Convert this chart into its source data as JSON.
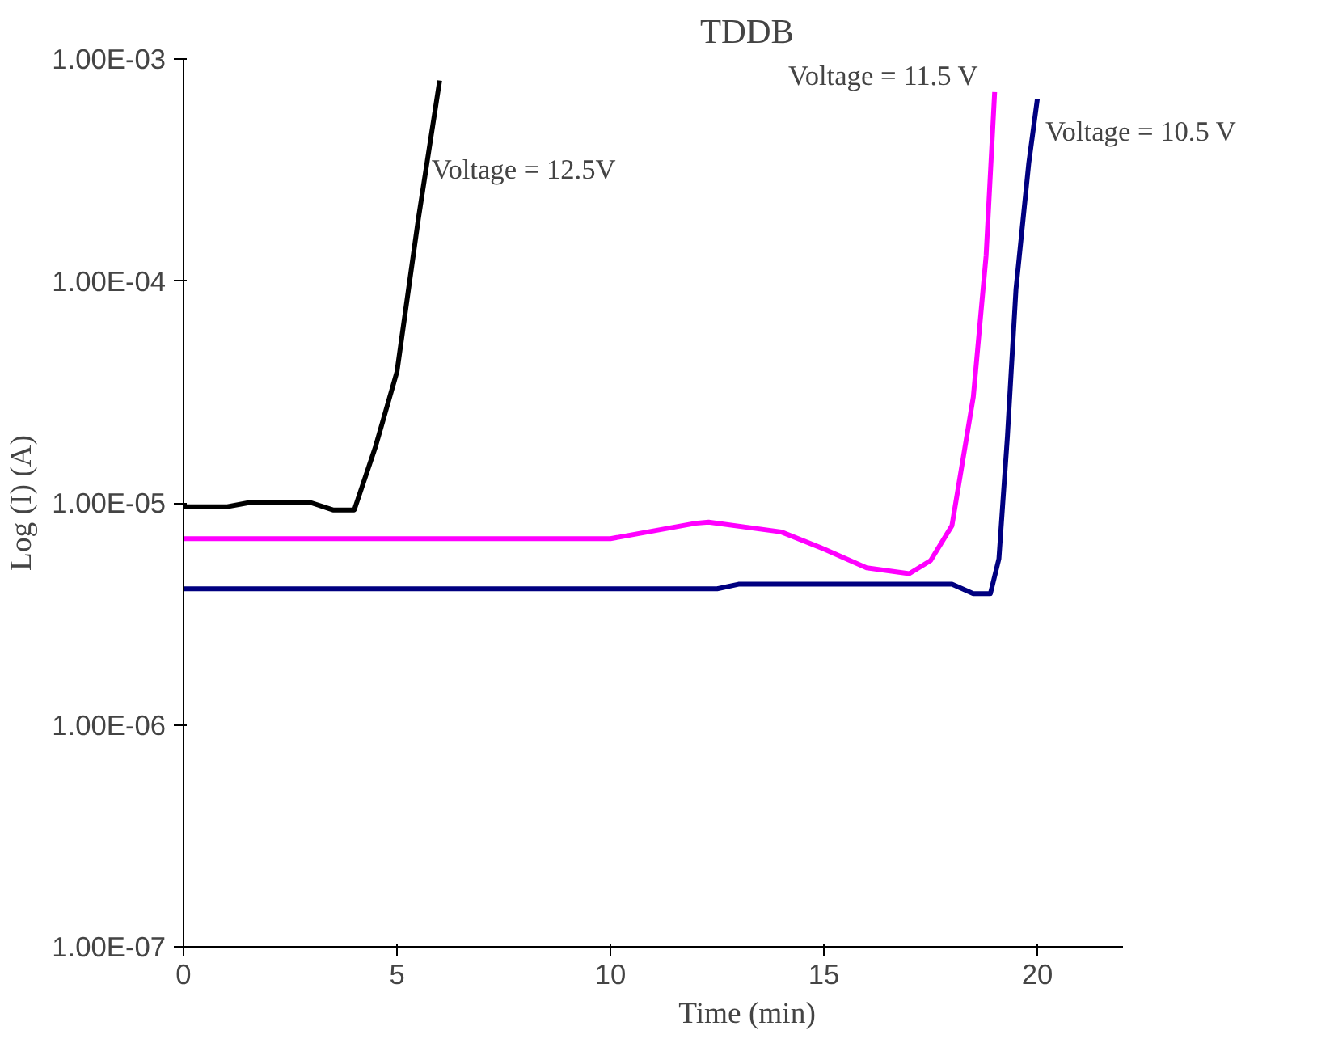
{
  "chart_data": {
    "type": "line",
    "title": "TDDB",
    "xlabel": "Time (min)",
    "ylabel": "Log (I) (A)",
    "log": "y",
    "grid": false,
    "marker": "none",
    "line_style": "solid",
    "xlim": [
      0,
      22
    ],
    "xticks": [
      0,
      5,
      10,
      15,
      20
    ],
    "ylim": [
      1e-07,
      0.001
    ],
    "yticks": [
      {
        "value": 1e-07,
        "label": "1.00E-07"
      },
      {
        "value": 1e-06,
        "label": "1.00E-06"
      },
      {
        "value": 1e-05,
        "label": "1.00E-05"
      },
      {
        "value": 0.0001,
        "label": "1.00E-04"
      },
      {
        "value": 0.001,
        "label": "1.00E-03"
      }
    ],
    "series": [
      {
        "color": "#000000",
        "x": [
          0,
          1,
          1.5,
          3,
          3.5,
          4,
          4.5,
          5,
          5.5,
          6
        ],
        "values": [
          9.6e-06,
          9.6e-06,
          1e-05,
          1e-05,
          9.3e-06,
          9.3e-06,
          1.8e-05,
          3.9e-05,
          0.00019,
          0.0008
        ]
      },
      {
        "color": "#ff00ff",
        "x": [
          0,
          10,
          12,
          12.3,
          14,
          15,
          16,
          17,
          17.5,
          18,
          18.5,
          18.8,
          19
        ],
        "values": [
          6.9e-06,
          6.9e-06,
          8.1e-06,
          8.2e-06,
          7.4e-06,
          6.2e-06,
          5.1e-06,
          4.8e-06,
          5.5e-06,
          7.9e-06,
          3e-05,
          0.00013,
          0.00071
        ]
      },
      {
        "color": "#000080",
        "x": [
          0,
          12.5,
          13,
          18,
          18.5,
          18.9,
          19.1,
          19.3,
          19.5,
          19.8,
          20
        ],
        "values": [
          4.1e-06,
          4.1e-06,
          4.3e-06,
          4.3e-06,
          3.9e-06,
          3.9e-06,
          5.6e-06,
          2e-05,
          9.2e-05,
          0.00034,
          0.00066
        ]
      }
    ],
    "annotations": [
      "Voltage = 12.5V",
      "Voltage = 11.5 V",
      "Voltage = 10.5 V"
    ]
  }
}
